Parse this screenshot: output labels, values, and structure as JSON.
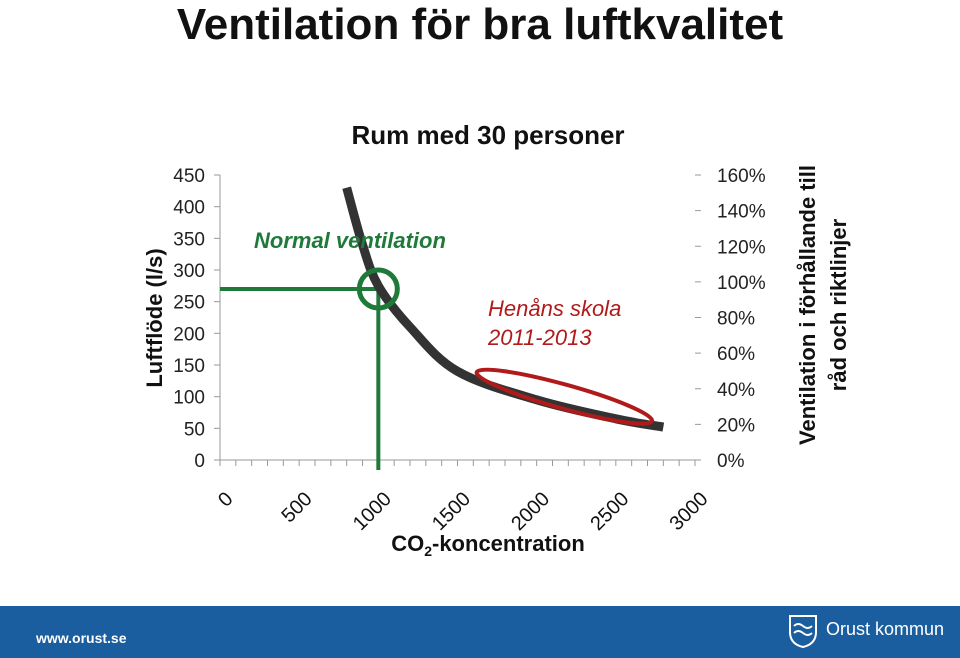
{
  "page": {
    "title": "Ventilation för bra luftkvalitet",
    "footer_url": "www.orust.se",
    "brand": "Orust kommun",
    "footer_color": "#1b5e9f"
  },
  "chart_data": {
    "type": "line",
    "title": "Rum med 30 personer",
    "xlabel_main": "CO",
    "xlabel_sub": "2",
    "xlabel_rest": "-koncentration",
    "ylabel": "Luftflöde (l/s)",
    "ylabel2": [
      "Ventilation i förhållande till",
      "råd och riktlinjer"
    ],
    "x_ticks": [
      "0",
      "500",
      "1000",
      "1500",
      "2000",
      "2500",
      "3000"
    ],
    "y_ticks": [
      "0",
      "50",
      "100",
      "150",
      "200",
      "250",
      "300",
      "350",
      "400",
      "450"
    ],
    "y2_ticks": [
      "0%",
      "20%",
      "40%",
      "60%",
      "80%",
      "100%",
      "120%",
      "140%",
      "160%"
    ],
    "xlim": [
      0,
      3000
    ],
    "ylim": [
      0,
      450
    ],
    "y2lim": [
      0,
      1.6
    ],
    "series": [
      {
        "color": "#333333",
        "x": [
          800,
          900,
          1000,
          1200,
          1500,
          2000,
          2500,
          2800
        ],
        "y": [
          430,
          340,
          275,
          210,
          140,
          95,
          65,
          52
        ]
      }
    ],
    "reference": {
      "x": 1000,
      "y": 270,
      "color": "#1f7a3a"
    },
    "annotations": {
      "normal": "Normal ventilation",
      "school_line1": "Henåns skola",
      "school_line2": "2011-2013",
      "school_x_range": [
        1600,
        2750
      ],
      "school_y_range": [
        60,
        140
      ],
      "highlight_color": "#b01a1a"
    },
    "grid": false
  }
}
